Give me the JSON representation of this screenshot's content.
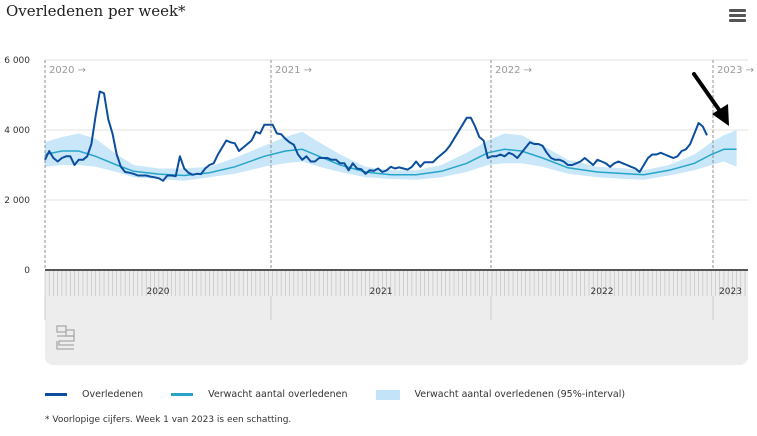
{
  "title": "Overledenen per week*",
  "menu_icon": "hamburger-menu-icon",
  "footnote": "* Voorlopige cijfers. Week 1 van 2023 is een schatting.",
  "logo_text": "cbs",
  "colors": {
    "observed": "#0b4e9e",
    "expected": "#27a5c9",
    "interval": "#c3e4f8",
    "annotation_arrow": "#000000"
  },
  "chart_data": {
    "type": "line",
    "title": "Overledenen per week*",
    "xlabel": "",
    "ylabel": "",
    "ylim": [
      0,
      6000
    ],
    "yticks": [
      0,
      2000,
      4000,
      6000
    ],
    "ytick_labels": [
      "0",
      "2 000",
      "4 000",
      "6 000"
    ],
    "grid": true,
    "x_unit": "week",
    "years": [
      "2020",
      "2021",
      "2022",
      "2023"
    ],
    "year_markers": [
      "2020 →",
      "2021 →",
      "2022 →",
      "2023 →"
    ],
    "legend": {
      "position": "bottom",
      "entries": [
        "Overledenen",
        "Verwacht aantal overledenen",
        "Verwacht aantal overledenen (95%-interval)"
      ]
    },
    "annotation": "arrow pointing at week 1 of 2023",
    "series": [
      {
        "name": "Overledenen",
        "kind": "line",
        "values_by_year": {
          "2020": [
            3150,
            3400,
            3200,
            3100,
            3200,
            3250,
            3250,
            3000,
            3150,
            3150,
            3250,
            3600,
            4400,
            5100,
            5050,
            4300,
            3900,
            3300,
            2950,
            2800,
            2780,
            2750,
            2700,
            2700,
            2700,
            2670,
            2650,
            2620,
            2550,
            2700,
            2700,
            2680,
            3250,
            2900,
            2780,
            2720,
            2750,
            2740,
            2900,
            3000,
            3050,
            3300,
            3500,
            3700,
            3650,
            3620,
            3400,
            3500,
            3600,
            3700,
            3950,
            3900,
            4150
          ],
          "2021": [
            4150,
            4150,
            3900,
            3880,
            3750,
            3650,
            3580,
            3300,
            3150,
            3250,
            3100,
            3100,
            3200,
            3200,
            3200,
            3150,
            3150,
            3050,
            3050,
            2850,
            3050,
            2900,
            2880,
            2750,
            2850,
            2830,
            2900,
            2800,
            2850,
            2950,
            2900,
            2930,
            2900,
            2870,
            2950,
            3100,
            2950,
            3080,
            3080,
            3080,
            3200,
            3300,
            3400,
            3550,
            3750,
            3950,
            4150,
            4350,
            4350,
            4100,
            3800,
            3700
          ],
          "2022": [
            3200,
            3250,
            3250,
            3300,
            3250,
            3350,
            3300,
            3200,
            3350,
            3500,
            3650,
            3600,
            3600,
            3550,
            3350,
            3200,
            3150,
            3150,
            3100,
            3000,
            3000,
            3050,
            3100,
            3200,
            3100,
            3000,
            3150,
            3100,
            3050,
            2950,
            3050,
            3100,
            3050,
            3000,
            2950,
            2900,
            2800,
            3000,
            3200,
            3300,
            3300,
            3350,
            3300,
            3250,
            3200,
            3250,
            3400,
            3450,
            3600,
            3900,
            4200,
            4100
          ],
          "2023": [
            3850
          ]
        }
      },
      {
        "name": "Verwacht aantal overledenen",
        "kind": "line",
        "points": [
          {
            "year": 2020,
            "week": 1,
            "value": 3300
          },
          {
            "year": 2020,
            "week": 5,
            "value": 3400
          },
          {
            "year": 2020,
            "week": 9,
            "value": 3400
          },
          {
            "year": 2020,
            "week": 13,
            "value": 3250
          },
          {
            "year": 2020,
            "week": 18,
            "value": 3000
          },
          {
            "year": 2020,
            "week": 22,
            "value": 2820
          },
          {
            "year": 2020,
            "week": 28,
            "value": 2740
          },
          {
            "year": 2020,
            "week": 34,
            "value": 2700
          },
          {
            "year": 2020,
            "week": 40,
            "value": 2780
          },
          {
            "year": 2020,
            "week": 46,
            "value": 2950
          },
          {
            "year": 2020,
            "week": 53,
            "value": 3250
          },
          {
            "year": 2021,
            "week": 5,
            "value": 3400
          },
          {
            "year": 2021,
            "week": 9,
            "value": 3450
          },
          {
            "year": 2021,
            "week": 13,
            "value": 3250
          },
          {
            "year": 2021,
            "week": 18,
            "value": 3000
          },
          {
            "year": 2021,
            "week": 24,
            "value": 2800
          },
          {
            "year": 2021,
            "week": 30,
            "value": 2720
          },
          {
            "year": 2021,
            "week": 36,
            "value": 2720
          },
          {
            "year": 2021,
            "week": 42,
            "value": 2820
          },
          {
            "year": 2021,
            "week": 48,
            "value": 3050
          },
          {
            "year": 2022,
            "week": 1,
            "value": 3350
          },
          {
            "year": 2022,
            "week": 5,
            "value": 3450
          },
          {
            "year": 2022,
            "week": 9,
            "value": 3400
          },
          {
            "year": 2022,
            "week": 14,
            "value": 3200
          },
          {
            "year": 2022,
            "week": 20,
            "value": 2920
          },
          {
            "year": 2022,
            "week": 27,
            "value": 2800
          },
          {
            "year": 2022,
            "week": 34,
            "value": 2750
          },
          {
            "year": 2022,
            "week": 38,
            "value": 2720
          },
          {
            "year": 2022,
            "week": 44,
            "value": 2850
          },
          {
            "year": 2022,
            "week": 50,
            "value": 3050
          },
          {
            "year": 2023,
            "week": 2,
            "value": 3300
          },
          {
            "year": 2023,
            "week": 5,
            "value": 3450
          },
          {
            "year": 2023,
            "week": 8,
            "value": 3450
          }
        ]
      },
      {
        "name": "Verwacht aantal overledenen (95%-interval)",
        "kind": "area",
        "points": [
          {
            "year": 2020,
            "week": 1,
            "low": 2950,
            "high": 3650
          },
          {
            "year": 2020,
            "week": 5,
            "low": 3000,
            "high": 3800
          },
          {
            "year": 2020,
            "week": 9,
            "low": 3000,
            "high": 3900
          },
          {
            "year": 2020,
            "week": 13,
            "low": 2950,
            "high": 3750
          },
          {
            "year": 2020,
            "week": 18,
            "low": 2800,
            "high": 3300
          },
          {
            "year": 2020,
            "week": 22,
            "low": 2650,
            "high": 3000
          },
          {
            "year": 2020,
            "week": 28,
            "low": 2600,
            "high": 2900
          },
          {
            "year": 2020,
            "week": 34,
            "low": 2550,
            "high": 2900
          },
          {
            "year": 2020,
            "week": 40,
            "low": 2650,
            "high": 2950
          },
          {
            "year": 2020,
            "week": 46,
            "low": 2750,
            "high": 3200
          },
          {
            "year": 2020,
            "week": 53,
            "low": 2950,
            "high": 3550
          },
          {
            "year": 2021,
            "week": 5,
            "low": 3050,
            "high": 3800
          },
          {
            "year": 2021,
            "week": 9,
            "low": 3100,
            "high": 3950
          },
          {
            "year": 2021,
            "week": 13,
            "low": 2950,
            "high": 3650
          },
          {
            "year": 2021,
            "week": 18,
            "low": 2800,
            "high": 3300
          },
          {
            "year": 2021,
            "week": 24,
            "low": 2650,
            "high": 2950
          },
          {
            "year": 2021,
            "week": 30,
            "low": 2600,
            "high": 2850
          },
          {
            "year": 2021,
            "week": 36,
            "low": 2580,
            "high": 2850
          },
          {
            "year": 2021,
            "week": 42,
            "low": 2650,
            "high": 3000
          },
          {
            "year": 2021,
            "week": 48,
            "low": 2800,
            "high": 3350
          },
          {
            "year": 2022,
            "week": 1,
            "low": 3000,
            "high": 3700
          },
          {
            "year": 2022,
            "week": 5,
            "low": 3050,
            "high": 3900
          },
          {
            "year": 2022,
            "week": 9,
            "low": 3050,
            "high": 3850
          },
          {
            "year": 2022,
            "week": 14,
            "low": 2950,
            "high": 3550
          },
          {
            "year": 2022,
            "week": 20,
            "low": 2750,
            "high": 3150
          },
          {
            "year": 2022,
            "week": 27,
            "low": 2650,
            "high": 2950
          },
          {
            "year": 2022,
            "week": 34,
            "low": 2600,
            "high": 2900
          },
          {
            "year": 2022,
            "week": 38,
            "low": 2580,
            "high": 2850
          },
          {
            "year": 2022,
            "week": 44,
            "low": 2700,
            "high": 3000
          },
          {
            "year": 2022,
            "week": 50,
            "low": 2850,
            "high": 3300
          },
          {
            "year": 2023,
            "week": 2,
            "low": 3000,
            "high": 3650
          },
          {
            "year": 2023,
            "week": 5,
            "low": 3100,
            "high": 3850
          },
          {
            "year": 2023,
            "week": 8,
            "low": 2950,
            "high": 4000
          }
        ]
      }
    ]
  }
}
